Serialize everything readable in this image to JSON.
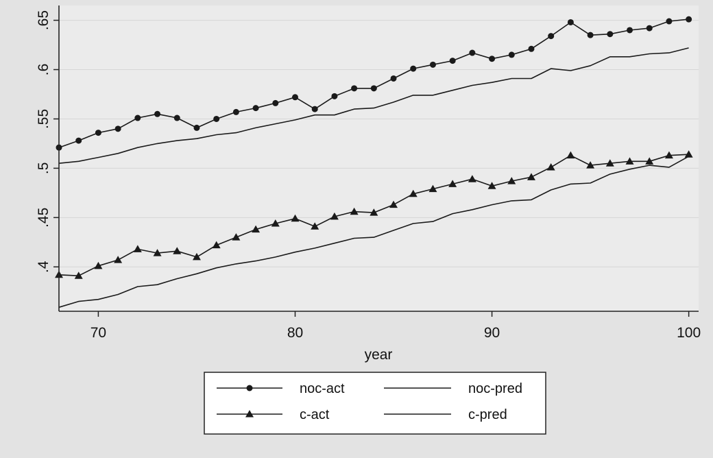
{
  "chart_data": {
    "type": "line",
    "xlabel": "year",
    "ylabel": "",
    "xlim": [
      68,
      100.5
    ],
    "ylim": [
      0.355,
      0.665
    ],
    "xticks": [
      70,
      80,
      90,
      100
    ],
    "yticks": [
      0.4,
      0.45,
      0.5,
      0.55,
      0.6,
      0.65
    ],
    "xtick_labels": [
      "70",
      "80",
      "90",
      "100"
    ],
    "ytick_labels": [
      ".4",
      ".45",
      ".5",
      ".55",
      ".6",
      ".65"
    ],
    "legend_position": "bottom",
    "x": [
      68,
      69,
      70,
      71,
      72,
      73,
      74,
      75,
      76,
      77,
      78,
      79,
      80,
      81,
      82,
      83,
      84,
      85,
      86,
      87,
      88,
      89,
      90,
      91,
      92,
      93,
      94,
      95,
      96,
      97,
      98,
      99,
      100
    ],
    "series": [
      {
        "name": "noc-act",
        "marker": "circle",
        "values": [
          0.521,
          0.528,
          0.536,
          0.54,
          0.551,
          0.555,
          0.551,
          0.541,
          0.55,
          0.557,
          0.561,
          0.566,
          0.572,
          0.56,
          0.573,
          0.581,
          0.581,
          0.591,
          0.601,
          0.605,
          0.609,
          0.617,
          0.611,
          0.615,
          0.621,
          0.634,
          0.648,
          0.635,
          0.636,
          0.64,
          0.642,
          0.649,
          0.651
        ]
      },
      {
        "name": "noc-pred",
        "marker": "none",
        "values": [
          0.505,
          0.507,
          0.511,
          0.515,
          0.521,
          0.525,
          0.528,
          0.53,
          0.534,
          0.536,
          0.541,
          0.545,
          0.549,
          0.554,
          0.554,
          0.56,
          0.561,
          0.567,
          0.574,
          0.574,
          0.579,
          0.584,
          0.587,
          0.591,
          0.591,
          0.601,
          0.599,
          0.604,
          0.613,
          0.613,
          0.616,
          0.617,
          0.622
        ]
      },
      {
        "name": "c-act",
        "marker": "triangle",
        "values": [
          0.392,
          0.391,
          0.401,
          0.407,
          0.418,
          0.414,
          0.416,
          0.41,
          0.422,
          0.43,
          0.438,
          0.444,
          0.449,
          0.441,
          0.451,
          0.456,
          0.455,
          0.463,
          0.474,
          0.479,
          0.484,
          0.489,
          0.482,
          0.487,
          0.491,
          0.501,
          0.513,
          0.503,
          0.505,
          0.507,
          0.507,
          0.513,
          0.514
        ]
      },
      {
        "name": "c-pred",
        "marker": "none",
        "values": [
          0.359,
          0.365,
          0.367,
          0.372,
          0.38,
          0.382,
          0.388,
          0.393,
          0.399,
          0.403,
          0.406,
          0.41,
          0.415,
          0.419,
          0.424,
          0.429,
          0.43,
          0.437,
          0.444,
          0.446,
          0.454,
          0.458,
          0.463,
          0.467,
          0.468,
          0.478,
          0.484,
          0.485,
          0.494,
          0.499,
          0.503,
          0.501,
          0.512
        ]
      }
    ]
  },
  "colors": {
    "background": "#e3e3e3",
    "plot_background": "#ebebeb",
    "line": "#1a1a1a",
    "legend_background": "#ffffff"
  }
}
